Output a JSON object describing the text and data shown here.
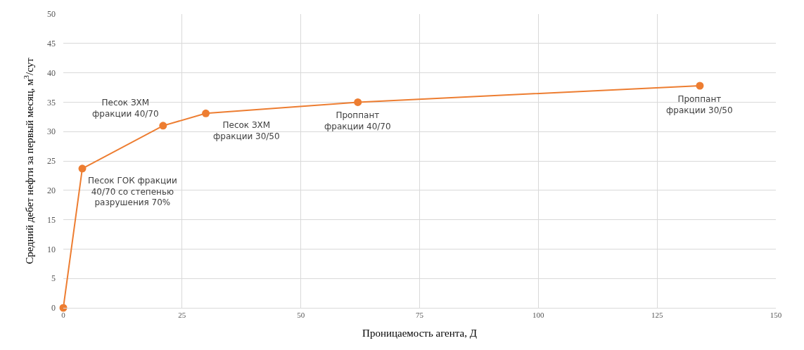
{
  "chart_data": {
    "type": "line",
    "xlabel": "Проницаемость агента, Д",
    "ylabel": "Средний дебет нефти за первый месяц, м$^{3}$/сут",
    "x": [
      0,
      4,
      21,
      30,
      62,
      134
    ],
    "series": [
      {
        "color": "#ed7d31",
        "values": [
          0,
          23.7,
          31,
          33.1,
          35,
          37.8
        ]
      }
    ],
    "xlim": [
      0,
      150
    ],
    "xticks": [
      0,
      25,
      50,
      75,
      100,
      125,
      150
    ],
    "ylim": [
      0,
      50
    ],
    "yticks": [
      0,
      5,
      10,
      15,
      20,
      25,
      30,
      35,
      40,
      45,
      50
    ],
    "grid": true,
    "marker": "circle",
    "line_style": "solid",
    "annotations": [
      {
        "text": "Песок ГОК фракции\n40/70 со степенью\nразрушения 70%",
        "x": 4,
        "y": 23.7
      },
      {
        "text": "Песок ЗХМ\nфракции 40/70",
        "x": 21,
        "y": 31
      },
      {
        "text": "Песок ЗХМ\nфракции 30/50",
        "x": 30,
        "y": 33.1
      },
      {
        "text": "Проппант\nфракции 40/70",
        "x": 62,
        "y": 35
      },
      {
        "text": "Проппант\nфракции 30/50",
        "x": 134,
        "y": 37.8
      }
    ]
  }
}
